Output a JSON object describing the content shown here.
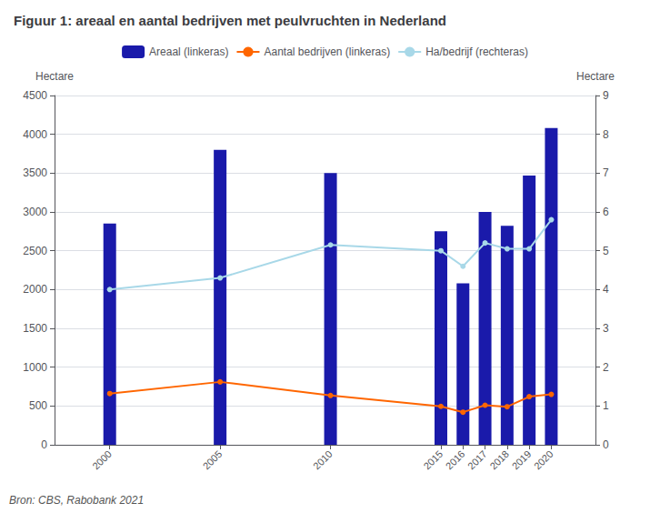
{
  "chart_data": {
    "type": "bar",
    "title": "Figuur 1: areaal en aantal bedrijven met peulvruchten in Nederland",
    "annotations": [
      "Bron: CBS, Rabobank 2021"
    ],
    "x": [
      2000,
      2005,
      2010,
      2015,
      2016,
      2017,
      2018,
      2019,
      2020
    ],
    "xlim": [
      1997.5,
      2022
    ],
    "xticks": [
      2000,
      2005,
      2010,
      2015,
      2016,
      2017,
      2018,
      2019,
      2020
    ],
    "ylabel": "Hectare",
    "ylim": [
      0,
      4500
    ],
    "yticks": [
      0,
      500,
      1000,
      1500,
      2000,
      2500,
      3000,
      3500,
      4000,
      4500
    ],
    "y2label": "Hectare",
    "y2lim": [
      0,
      9
    ],
    "y2ticks": [
      0,
      1,
      2,
      3,
      4,
      5,
      6,
      7,
      8,
      9
    ],
    "grid": true,
    "legend": "top",
    "series": [
      {
        "name": "Areaal (linkeras)",
        "type": "bar",
        "color": "#1a1aaa",
        "values": [
          2850,
          3800,
          3500,
          2750,
          2080,
          3000,
          2820,
          3470,
          4080
        ]
      },
      {
        "name": "Aantal bedrijven (linkeras)",
        "type": "line",
        "marker": "circle",
        "color": "#ff6600",
        "values": [
          660,
          810,
          635,
          495,
          420,
          510,
          490,
          620,
          650
        ]
      },
      {
        "name": "Ha/bedrijf (rechteras)",
        "type": "line",
        "marker": "circle",
        "axis": "y2",
        "color": "#a8d8e8",
        "values": [
          4.0,
          4.3,
          5.15,
          5.0,
          4.6,
          5.2,
          5.05,
          5.05,
          5.8
        ]
      }
    ]
  }
}
